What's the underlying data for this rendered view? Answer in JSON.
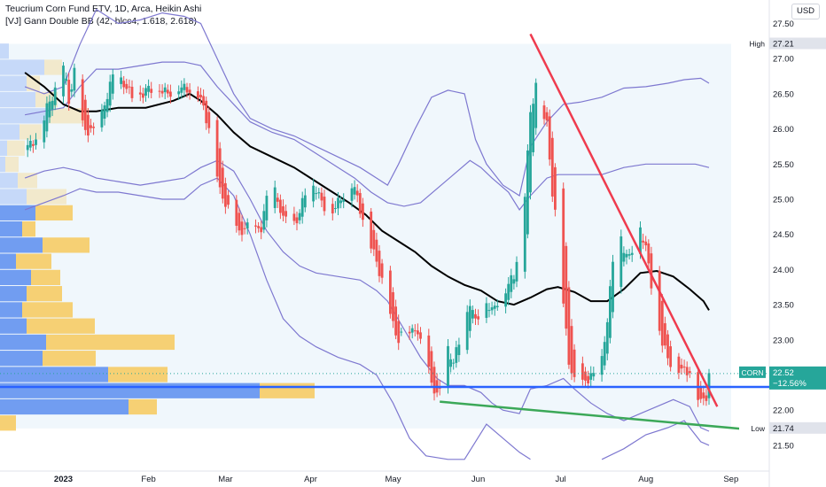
{
  "header": {
    "title": "Teucrium Corn Fund ETV, 1D, Arca, Heikin Ashi",
    "indicator": "[VJ] Gann Double BB (42, hlcc4, 1.618, 2.618)",
    "currency": "USD"
  },
  "colors": {
    "up": "#26a69a",
    "down": "#ef5350",
    "sma": "#000000",
    "bands": "#7e78d0",
    "resistance": "#ef3b4e",
    "support": "#3ba858",
    "poc": "#2962ff",
    "vp_up": "#5b8def",
    "vp_down": "#f7c95c"
  },
  "chart_data": {
    "type": "candlestick",
    "style": "heikin-ashi",
    "symbol": "CORN",
    "ylim": [
      21.3,
      27.75
    ],
    "xlim_days": [
      -14,
      248
    ],
    "grid": false,
    "y_ticks": [
      "27.50",
      "27.00",
      "26.50",
      "26.00",
      "25.50",
      "25.00",
      "24.50",
      "24.00",
      "23.50",
      "23.00",
      "22.50",
      "22.00",
      "21.50"
    ],
    "x_ticks": [
      {
        "label": "2023",
        "day": 0
      },
      {
        "label": "Feb",
        "day": 31
      },
      {
        "label": "Mar",
        "day": 59
      },
      {
        "label": "Apr",
        "day": 90
      },
      {
        "label": "May",
        "day": 120
      },
      {
        "label": "Jun",
        "day": 151
      },
      {
        "label": "Jul",
        "day": 181
      },
      {
        "label": "Aug",
        "day": 212
      },
      {
        "label": "Sep",
        "day": 243
      }
    ],
    "price_labels": [
      {
        "name": "High",
        "value": "27.21",
        "y": 27.21
      },
      {
        "name": "CORN",
        "value": "22.52",
        "change": "−12.56%",
        "y": 22.52
      },
      {
        "name": "Low",
        "value": "21.74",
        "y": 21.74
      }
    ],
    "ohlc_waypoints": [
      [
        -14,
        25.7
      ],
      [
        -9,
        25.9
      ],
      [
        -6,
        26.3
      ],
      [
        -3,
        26.55
      ],
      [
        0,
        26.9
      ],
      [
        2,
        26.4
      ],
      [
        4,
        26.8
      ],
      [
        6,
        26.2
      ],
      [
        8,
        25.95
      ],
      [
        10,
        26.0
      ],
      [
        12,
        25.9
      ],
      [
        15,
        26.35
      ],
      [
        18,
        26.75
      ],
      [
        22,
        26.65
      ],
      [
        26,
        26.4
      ],
      [
        30,
        26.55
      ],
      [
        34,
        26.6
      ],
      [
        38,
        26.5
      ],
      [
        42,
        26.6
      ],
      [
        46,
        26.55
      ],
      [
        49,
        26.5
      ],
      [
        51,
        26.3
      ],
      [
        53,
        26.0
      ],
      [
        55,
        25.6
      ],
      [
        57,
        25.1
      ],
      [
        59,
        24.95
      ],
      [
        62,
        24.7
      ],
      [
        64,
        24.5
      ],
      [
        66,
        24.6
      ],
      [
        68,
        24.6
      ],
      [
        70,
        24.55
      ],
      [
        72,
        24.6
      ],
      [
        74,
        25.0
      ],
      [
        76,
        25.2
      ],
      [
        78,
        25.0
      ],
      [
        80,
        24.7
      ],
      [
        82,
        24.8
      ],
      [
        84,
        24.65
      ],
      [
        86,
        24.8
      ],
      [
        88,
        25.1
      ],
      [
        90,
        25.25
      ],
      [
        92,
        25.15
      ],
      [
        94,
        24.95
      ],
      [
        96,
        24.85
      ],
      [
        98,
        24.85
      ],
      [
        100,
        24.95
      ],
      [
        102,
        25.05
      ],
      [
        104,
        25.3
      ],
      [
        106,
        25.15
      ],
      [
        108,
        24.85
      ],
      [
        110,
        24.6
      ],
      [
        112,
        24.35
      ],
      [
        114,
        24.1
      ],
      [
        116,
        23.85
      ],
      [
        118,
        23.55
      ],
      [
        120,
        23.2
      ],
      [
        122,
        23.0
      ],
      [
        124,
        23.1
      ],
      [
        126,
        23.05
      ],
      [
        128,
        23.2
      ],
      [
        130,
        22.95
      ],
      [
        132,
        22.7
      ],
      [
        134,
        22.4
      ],
      [
        136,
        22.2
      ],
      [
        138,
        22.35
      ],
      [
        140,
        22.85
      ],
      [
        142,
        22.7
      ],
      [
        144,
        22.95
      ],
      [
        146,
        23.2
      ],
      [
        148,
        23.55
      ],
      [
        150,
        23.25
      ],
      [
        152,
        23.45
      ],
      [
        154,
        23.55
      ],
      [
        156,
        23.4
      ],
      [
        158,
        23.55
      ],
      [
        160,
        23.65
      ],
      [
        162,
        23.8
      ],
      [
        164,
        23.9
      ],
      [
        166,
        24.4
      ],
      [
        168,
        25.1
      ],
      [
        170,
        26.2
      ],
      [
        172,
        26.65
      ],
      [
        174,
        26.3
      ],
      [
        176,
        26.05
      ],
      [
        178,
        25.1
      ],
      [
        180,
        24.5
      ],
      [
        182,
        23.5
      ],
      [
        184,
        22.7
      ],
      [
        186,
        22.4
      ],
      [
        188,
        22.35
      ],
      [
        190,
        22.4
      ],
      [
        192,
        22.5
      ],
      [
        194,
        22.45
      ],
      [
        196,
        22.7
      ],
      [
        198,
        23.3
      ],
      [
        200,
        24.1
      ],
      [
        202,
        24.55
      ],
      [
        204,
        24.3
      ],
      [
        206,
        24.15
      ],
      [
        208,
        24.4
      ],
      [
        210,
        24.6
      ],
      [
        212,
        24.3
      ],
      [
        214,
        23.8
      ],
      [
        216,
        23.4
      ],
      [
        218,
        22.95
      ],
      [
        220,
        22.75
      ],
      [
        222,
        22.6
      ],
      [
        224,
        22.6
      ],
      [
        226,
        22.55
      ],
      [
        228,
        22.55
      ],
      [
        230,
        22.3
      ],
      [
        232,
        22.1
      ],
      [
        234,
        22.2
      ],
      [
        235,
        22.5
      ]
    ],
    "sma_line": [
      [
        -14,
        26.8
      ],
      [
        -7,
        26.6
      ],
      [
        0,
        26.35
      ],
      [
        6,
        26.25
      ],
      [
        12,
        26.25
      ],
      [
        20,
        26.3
      ],
      [
        30,
        26.3
      ],
      [
        40,
        26.4
      ],
      [
        46,
        26.5
      ],
      [
        50,
        26.4
      ],
      [
        56,
        26.2
      ],
      [
        62,
        25.95
      ],
      [
        68,
        25.75
      ],
      [
        76,
        25.6
      ],
      [
        84,
        25.45
      ],
      [
        90,
        25.3
      ],
      [
        96,
        25.15
      ],
      [
        104,
        24.95
      ],
      [
        110,
        24.78
      ],
      [
        116,
        24.55
      ],
      [
        122,
        24.4
      ],
      [
        128,
        24.25
      ],
      [
        134,
        24.05
      ],
      [
        140,
        23.9
      ],
      [
        146,
        23.78
      ],
      [
        152,
        23.7
      ],
      [
        158,
        23.55
      ],
      [
        164,
        23.5
      ],
      [
        170,
        23.6
      ],
      [
        176,
        23.72
      ],
      [
        180,
        23.75
      ],
      [
        186,
        23.68
      ],
      [
        192,
        23.55
      ],
      [
        198,
        23.55
      ],
      [
        204,
        23.72
      ],
      [
        210,
        23.95
      ],
      [
        216,
        23.98
      ],
      [
        222,
        23.9
      ],
      [
        228,
        23.72
      ],
      [
        233,
        23.55
      ],
      [
        235,
        23.42
      ]
    ],
    "bands_outer": [
      [
        [
          -14,
          26.6
        ],
        [
          -7,
          26.5
        ],
        [
          0,
          26.6
        ],
        [
          6,
          27.2
        ],
        [
          12,
          27.7
        ],
        [
          20,
          27.5
        ],
        [
          28,
          27.55
        ],
        [
          36,
          27.65
        ],
        [
          44,
          27.6
        ],
        [
          50,
          27.5
        ],
        [
          56,
          27.0
        ],
        [
          62,
          26.5
        ],
        [
          68,
          26.15
        ],
        [
          76,
          26.0
        ],
        [
          84,
          25.9
        ],
        [
          92,
          25.75
        ],
        [
          100,
          25.6
        ],
        [
          108,
          25.45
        ],
        [
          114,
          25.3
        ],
        [
          118,
          25.2
        ],
        [
          122,
          25.5
        ],
        [
          128,
          26.0
        ],
        [
          134,
          26.45
        ],
        [
          140,
          26.55
        ],
        [
          146,
          26.5
        ],
        [
          150,
          25.85
        ],
        [
          154,
          25.5
        ],
        [
          160,
          25.2
        ],
        [
          166,
          25.05
        ],
        [
          170,
          25.75
        ],
        [
          176,
          26.1
        ],
        [
          182,
          26.35
        ],
        [
          188,
          26.38
        ],
        [
          196,
          26.45
        ],
        [
          204,
          26.58
        ],
        [
          212,
          26.6
        ],
        [
          220,
          26.65
        ],
        [
          226,
          26.7
        ],
        [
          232,
          26.72
        ],
        [
          235,
          26.65
        ]
      ],
      [
        [
          -14,
          24.85
        ],
        [
          -7,
          24.95
        ],
        [
          0,
          25.05
        ],
        [
          6,
          25.15
        ],
        [
          12,
          25.1
        ],
        [
          20,
          25.1
        ],
        [
          28,
          25.05
        ],
        [
          36,
          25.0
        ],
        [
          44,
          25.0
        ],
        [
          50,
          25.2
        ],
        [
          56,
          25.3
        ],
        [
          62,
          25.05
        ],
        [
          68,
          24.5
        ],
        [
          74,
          23.85
        ],
        [
          80,
          23.3
        ],
        [
          86,
          23.05
        ],
        [
          92,
          22.9
        ],
        [
          100,
          22.75
        ],
        [
          108,
          22.65
        ],
        [
          114,
          22.5
        ],
        [
          120,
          22.1
        ],
        [
          126,
          21.6
        ],
        [
          132,
          21.35
        ],
        [
          140,
          21.3
        ],
        [
          146,
          21.3
        ],
        [
          150,
          21.55
        ],
        [
          154,
          21.8
        ],
        [
          160,
          21.6
        ],
        [
          166,
          21.4
        ],
        [
          170,
          21.3
        ]
      ],
      [
        [
          196,
          21.3
        ],
        [
          204,
          21.45
        ],
        [
          212,
          21.65
        ],
        [
          220,
          21.75
        ],
        [
          226,
          21.85
        ],
        [
          232,
          21.55
        ],
        [
          235,
          21.5
        ]
      ]
    ],
    "bands_inner": [
      [
        [
          -14,
          26.2
        ],
        [
          -7,
          26.25
        ],
        [
          0,
          26.3
        ],
        [
          6,
          26.6
        ],
        [
          12,
          26.85
        ],
        [
          20,
          26.85
        ],
        [
          28,
          26.9
        ],
        [
          36,
          26.95
        ],
        [
          44,
          26.95
        ],
        [
          50,
          26.9
        ],
        [
          56,
          26.6
        ],
        [
          62,
          26.35
        ],
        [
          68,
          26.1
        ],
        [
          76,
          25.95
        ],
        [
          84,
          25.85
        ],
        [
          92,
          25.65
        ],
        [
          100,
          25.45
        ],
        [
          106,
          25.3
        ],
        [
          112,
          25.1
        ],
        [
          118,
          24.95
        ],
        [
          124,
          24.9
        ],
        [
          130,
          24.95
        ],
        [
          136,
          25.15
        ],
        [
          142,
          25.35
        ],
        [
          148,
          25.55
        ],
        [
          152,
          25.45
        ],
        [
          156,
          25.3
        ],
        [
          162,
          25.1
        ],
        [
          166,
          24.85
        ],
        [
          170,
          25.05
        ],
        [
          176,
          25.3
        ],
        [
          180,
          25.35
        ],
        [
          186,
          25.35
        ],
        [
          196,
          25.35
        ],
        [
          204,
          25.45
        ],
        [
          212,
          25.5
        ],
        [
          222,
          25.5
        ],
        [
          230,
          25.5
        ],
        [
          235,
          25.45
        ]
      ],
      [
        [
          -14,
          25.3
        ],
        [
          -7,
          25.4
        ],
        [
          0,
          25.45
        ],
        [
          6,
          25.4
        ],
        [
          12,
          25.3
        ],
        [
          20,
          25.25
        ],
        [
          28,
          25.2
        ],
        [
          36,
          25.25
        ],
        [
          44,
          25.3
        ],
        [
          50,
          25.45
        ],
        [
          56,
          25.55
        ],
        [
          62,
          25.4
        ],
        [
          68,
          25.0
        ],
        [
          74,
          24.55
        ],
        [
          80,
          24.25
        ],
        [
          86,
          24.05
        ],
        [
          92,
          23.95
        ],
        [
          100,
          23.9
        ],
        [
          108,
          23.85
        ],
        [
          114,
          23.7
        ],
        [
          118,
          23.55
        ],
        [
          124,
          23.15
        ],
        [
          130,
          22.75
        ],
        [
          136,
          22.45
        ],
        [
          140,
          22.35
        ],
        [
          146,
          22.35
        ],
        [
          152,
          22.25
        ],
        [
          156,
          22.1
        ],
        [
          160,
          22.0
        ],
        [
          166,
          21.95
        ],
        [
          170,
          22.3
        ],
        [
          176,
          22.35
        ],
        [
          182,
          22.45
        ],
        [
          186,
          22.3
        ],
        [
          192,
          22.1
        ],
        [
          198,
          21.95
        ],
        [
          204,
          21.85
        ],
        [
          210,
          21.95
        ],
        [
          216,
          22.05
        ],
        [
          222,
          22.15
        ],
        [
          228,
          22.05
        ],
        [
          232,
          21.75
        ],
        [
          235,
          21.7
        ]
      ]
    ],
    "resistance_line": {
      "from": [
        170,
        27.35
      ],
      "to": [
        238,
        22.05
      ]
    },
    "support_line": {
      "from": [
        137,
        22.12
      ],
      "to": [
        248,
        21.73
      ]
    },
    "poc_line": 22.33,
    "volume_profile": [
      {
        "price": 27.1,
        "up": 10,
        "down": 0
      },
      {
        "price": 26.87,
        "up": 50,
        "down": 20
      },
      {
        "price": 26.64,
        "up": 30,
        "down": 15
      },
      {
        "price": 26.41,
        "up": 40,
        "down": 25
      },
      {
        "price": 26.18,
        "up": 55,
        "down": 45
      },
      {
        "price": 25.95,
        "up": 22,
        "down": 25
      },
      {
        "price": 25.72,
        "up": 8,
        "down": 20
      },
      {
        "price": 25.49,
        "up": 6,
        "down": 15
      },
      {
        "price": 25.26,
        "up": 20,
        "down": 22
      },
      {
        "price": 25.03,
        "up": 30,
        "down": 45
      },
      {
        "price": 24.8,
        "up": 40,
        "down": 42
      },
      {
        "price": 24.57,
        "up": 25,
        "down": 15
      },
      {
        "price": 24.34,
        "up": 48,
        "down": 53
      },
      {
        "price": 24.11,
        "up": 18,
        "down": 40
      },
      {
        "price": 23.88,
        "up": 35,
        "down": 33
      },
      {
        "price": 23.65,
        "up": 30,
        "down": 40
      },
      {
        "price": 23.42,
        "up": 25,
        "down": 57
      },
      {
        "price": 23.19,
        "up": 30,
        "down": 77
      },
      {
        "price": 22.96,
        "up": 52,
        "down": 145
      },
      {
        "price": 22.73,
        "up": 48,
        "down": 60
      },
      {
        "price": 22.5,
        "up": 122,
        "down": 67
      },
      {
        "price": 22.27,
        "up": 293,
        "down": 62
      },
      {
        "price": 22.04,
        "up": 145,
        "down": 32
      },
      {
        "price": 21.81,
        "up": 0,
        "down": 18
      }
    ]
  }
}
